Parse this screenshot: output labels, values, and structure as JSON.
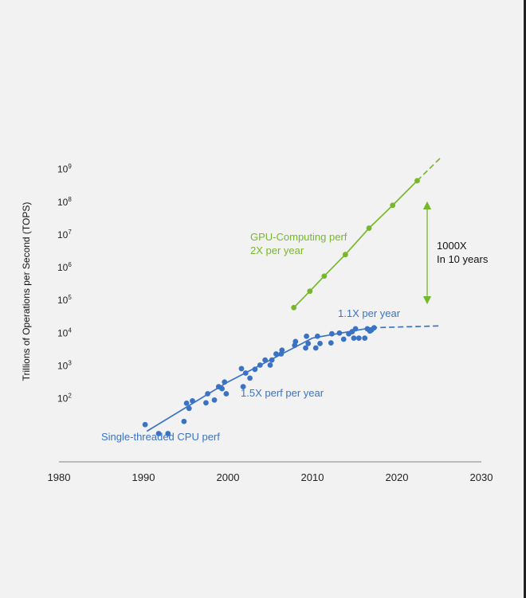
{
  "chart_data": {
    "type": "scatter",
    "ylabel": "Trillions of Operations per Second (TOPS)",
    "x_ticks": [
      1980,
      1990,
      2000,
      2010,
      2020,
      2030
    ],
    "y_ticks": [
      {
        "base": "10",
        "exp": "2"
      },
      {
        "base": "10",
        "exp": "3"
      },
      {
        "base": "10",
        "exp": "4"
      },
      {
        "base": "10",
        "exp": "5"
      },
      {
        "base": "10",
        "exp": "6"
      },
      {
        "base": "10",
        "exp": "7"
      },
      {
        "base": "10",
        "exp": "8"
      },
      {
        "base": "10",
        "exp": "9"
      }
    ],
    "ylim_log10": [
      0.65,
      9.65
    ],
    "y_scale": "log",
    "xlim": [
      1980,
      2030
    ],
    "grid": false,
    "colors": {
      "cpu": "#3b73c4",
      "gpu": "#76b82a",
      "arrow": "#76b82a",
      "axis": "#999999"
    },
    "annotations": {
      "cpu_label": "Single-threaded CPU perf",
      "cpu_rate_early": "1.5X perf per year",
      "cpu_rate_late": "1.1X per year",
      "gpu_line1": "GPU-Computing perf",
      "gpu_line2": "2X per year",
      "gap_line1": "1000X",
      "gap_line2": "In 10 years"
    },
    "series": [
      {
        "type": "scatter",
        "color": "#3b73c4",
        "points": [
          [
            1990.2,
            16
          ],
          [
            1991.8,
            8.5
          ],
          [
            1992.9,
            8.5
          ],
          [
            1994.8,
            20
          ],
          [
            1995.1,
            72
          ],
          [
            1995.4,
            50
          ],
          [
            1995.8,
            85
          ],
          [
            1997.4,
            74
          ],
          [
            1997.6,
            140
          ],
          [
            1998.4,
            90
          ],
          [
            1998.9,
            230
          ],
          [
            1999.3,
            200
          ],
          [
            1999.6,
            320
          ],
          [
            1999.8,
            140
          ],
          [
            2001.6,
            820
          ],
          [
            2001.8,
            230
          ],
          [
            2002.1,
            600
          ],
          [
            2002.6,
            420
          ],
          [
            2003.2,
            780
          ],
          [
            2003.8,
            1050
          ],
          [
            2004.4,
            1500
          ],
          [
            2005.0,
            1050
          ],
          [
            2005.2,
            1500
          ],
          [
            2005.7,
            2300
          ],
          [
            2006.3,
            2300
          ],
          [
            2006.4,
            3000
          ],
          [
            2007.9,
            4200
          ],
          [
            2008.0,
            5500
          ],
          [
            2009.2,
            3500
          ],
          [
            2009.3,
            8000
          ],
          [
            2009.5,
            4800
          ],
          [
            2010.4,
            3500
          ],
          [
            2010.6,
            8000
          ],
          [
            2010.9,
            4800
          ],
          [
            2012.2,
            5000
          ],
          [
            2012.3,
            9500
          ],
          [
            2013.2,
            10000
          ],
          [
            2013.7,
            6500
          ],
          [
            2014.3,
            9500
          ],
          [
            2014.7,
            11000
          ],
          [
            2014.9,
            7000
          ],
          [
            2015.1,
            13500
          ],
          [
            2015.5,
            7000
          ],
          [
            2016.2,
            7000
          ],
          [
            2016.5,
            13500
          ],
          [
            2016.8,
            11500
          ],
          [
            2017.0,
            12500
          ],
          [
            2017.3,
            14500
          ]
        ]
      },
      {
        "type": "line",
        "color": "#3b73c4",
        "trend": "cpu-trend",
        "points": [
          [
            1990.4,
            10
          ],
          [
            2000,
            320
          ],
          [
            2010,
            7000
          ],
          [
            2017,
            14500
          ]
        ]
      },
      {
        "type": "line",
        "dashed": true,
        "color": "#3b73c4",
        "trend": "cpu-projection",
        "points": [
          [
            2017,
            14500
          ],
          [
            2025,
            16500
          ]
        ]
      },
      {
        "type": "line",
        "color": "#76b82a",
        "markers": true,
        "trend": "gpu-trend",
        "points": [
          [
            2007.8,
            60000
          ],
          [
            2009.7,
            190000
          ],
          [
            2011.4,
            550000
          ],
          [
            2013.9,
            2500000
          ],
          [
            2016.7,
            16000000
          ],
          [
            2019.5,
            80000000
          ],
          [
            2022.4,
            450000000
          ]
        ]
      },
      {
        "type": "line",
        "dashed": true,
        "color": "#76b82a",
        "trend": "gpu-projection",
        "points": [
          [
            2022.4,
            450000000
          ],
          [
            2025.2,
            2300000000
          ]
        ]
      }
    ]
  }
}
